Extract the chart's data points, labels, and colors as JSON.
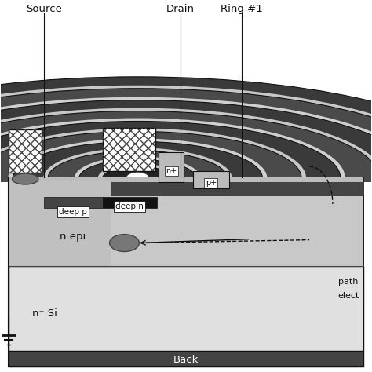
{
  "bg_color": "#ffffff",
  "labels": {
    "source": "Source",
    "drain": "Drain",
    "ring1": "Ring #1",
    "deep_p": "deep p",
    "deep_n": "deep n",
    "n_plus": "n+",
    "p_plus": "p+",
    "n_epi": "n epi",
    "n_minus_si": "n⁻ Si",
    "back": "Back",
    "path_elec1": "path",
    "path_elec2": "elect"
  },
  "colors": {
    "black": "#111111",
    "dark_gray": "#444444",
    "mid_gray": "#777777",
    "light_gray": "#bbbbbb",
    "very_light": "#dddddd",
    "epi_color": "#c8c8c8",
    "nsi_color": "#e0e0e0",
    "white": "#ffffff",
    "ring_dark": "#4a4a4a",
    "ring_white": "#f0f0f0",
    "ring_gap": "#d0d0d0"
  }
}
